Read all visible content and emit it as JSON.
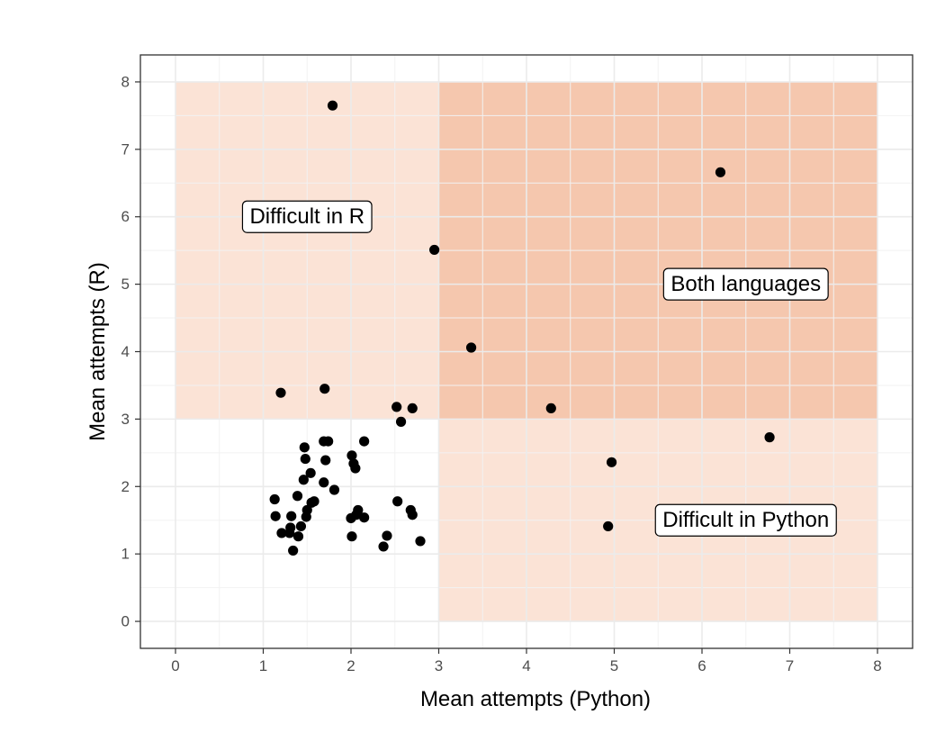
{
  "chart_data": {
    "type": "scatter",
    "title": "",
    "xlabel": "Mean attempts (Python)",
    "ylabel": "Mean attempts (R)",
    "xlim": [
      -0.4,
      8.4
    ],
    "ylim": [
      -0.4,
      8.4
    ],
    "x_ticks": [
      "0",
      "1",
      "2",
      "3",
      "4",
      "5",
      "6",
      "7",
      "8"
    ],
    "y_ticks": [
      "0",
      "1",
      "2",
      "3",
      "4",
      "5",
      "6",
      "7",
      "8"
    ],
    "grid": true,
    "regions": [
      {
        "x": [
          0,
          3
        ],
        "y": [
          3,
          8
        ],
        "fill": "#fbe3d6"
      },
      {
        "x": [
          3,
          8
        ],
        "y": [
          3,
          8
        ],
        "fill": "#f5c7ae"
      },
      {
        "x": [
          3,
          8
        ],
        "y": [
          0,
          3
        ],
        "fill": "#fbe3d6"
      }
    ],
    "annotations": [
      {
        "text": "Difficult in R",
        "x": 1.5,
        "y": 6.0
      },
      {
        "text": "Both languages",
        "x": 6.5,
        "y": 5.0
      },
      {
        "text": "Difficult in Python",
        "x": 6.5,
        "y": 1.5
      }
    ],
    "points": [
      {
        "x": 1.79,
        "y": 7.65
      },
      {
        "x": 6.21,
        "y": 6.66
      },
      {
        "x": 2.95,
        "y": 5.51
      },
      {
        "x": 3.37,
        "y": 4.06
      },
      {
        "x": 1.2,
        "y": 3.39
      },
      {
        "x": 1.7,
        "y": 3.45
      },
      {
        "x": 2.52,
        "y": 3.18
      },
      {
        "x": 2.7,
        "y": 3.16
      },
      {
        "x": 2.57,
        "y": 2.96
      },
      {
        "x": 4.28,
        "y": 3.16
      },
      {
        "x": 6.77,
        "y": 2.73
      },
      {
        "x": 4.97,
        "y": 2.36
      },
      {
        "x": 4.93,
        "y": 1.41
      },
      {
        "x": 1.47,
        "y": 2.58
      },
      {
        "x": 1.69,
        "y": 2.67
      },
      {
        "x": 1.74,
        "y": 2.67
      },
      {
        "x": 2.15,
        "y": 2.67
      },
      {
        "x": 1.48,
        "y": 2.41
      },
      {
        "x": 1.71,
        "y": 2.39
      },
      {
        "x": 2.03,
        "y": 2.34
      },
      {
        "x": 2.05,
        "y": 2.27
      },
      {
        "x": 1.54,
        "y": 2.2
      },
      {
        "x": 1.46,
        "y": 2.1
      },
      {
        "x": 2.01,
        "y": 2.46
      },
      {
        "x": 1.69,
        "y": 2.06
      },
      {
        "x": 1.81,
        "y": 1.95
      },
      {
        "x": 1.13,
        "y": 1.81
      },
      {
        "x": 1.39,
        "y": 1.86
      },
      {
        "x": 1.58,
        "y": 1.78
      },
      {
        "x": 1.55,
        "y": 1.76
      },
      {
        "x": 2.53,
        "y": 1.78
      },
      {
        "x": 1.5,
        "y": 1.65
      },
      {
        "x": 2.08,
        "y": 1.65
      },
      {
        "x": 2.68,
        "y": 1.65
      },
      {
        "x": 2.0,
        "y": 1.53
      },
      {
        "x": 2.15,
        "y": 1.54
      },
      {
        "x": 1.14,
        "y": 1.56
      },
      {
        "x": 1.32,
        "y": 1.56
      },
      {
        "x": 1.49,
        "y": 1.55
      },
      {
        "x": 2.7,
        "y": 1.58
      },
      {
        "x": 2.06,
        "y": 1.58
      },
      {
        "x": 1.43,
        "y": 1.41
      },
      {
        "x": 1.31,
        "y": 1.39
      },
      {
        "x": 1.21,
        "y": 1.31
      },
      {
        "x": 1.3,
        "y": 1.31
      },
      {
        "x": 1.4,
        "y": 1.26
      },
      {
        "x": 2.01,
        "y": 1.26
      },
      {
        "x": 2.41,
        "y": 1.27
      },
      {
        "x": 2.79,
        "y": 1.19
      },
      {
        "x": 2.37,
        "y": 1.11
      },
      {
        "x": 1.34,
        "y": 1.05
      }
    ]
  },
  "colors": {
    "panel_border": "#333333",
    "grid_major": "#ebebeb",
    "grid_minor": "#f2f2f2",
    "point": "#000000",
    "label_fill": "#ffffff",
    "label_border": "#000000"
  }
}
